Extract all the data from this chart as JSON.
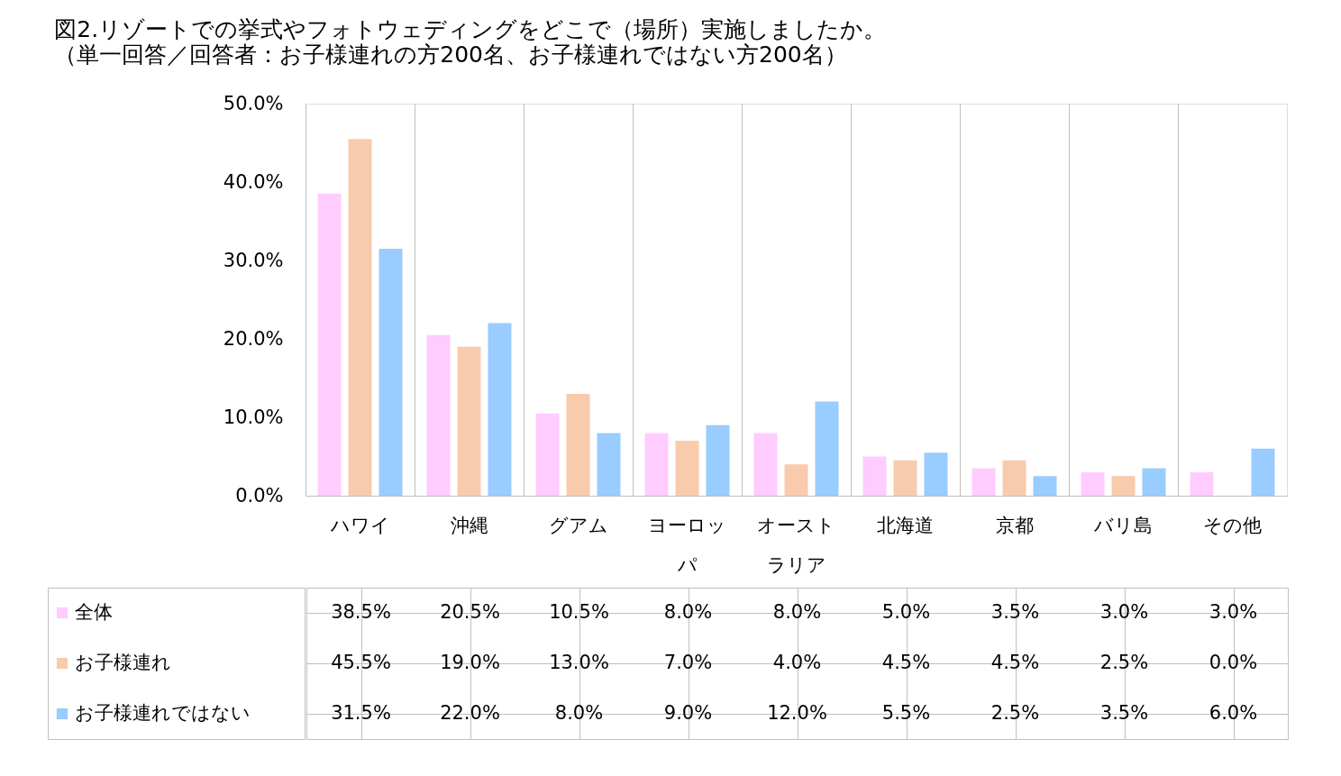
{
  "chart_data": {
    "type": "bar",
    "title": "図2.リゾートでの挙式やフォトウェディングをどこで（場所）実施しましたか。",
    "subtitle": "（単一回答／回答者：お子様連れの方200名、お子様連れではない方200名）",
    "categories": [
      "ハワイ",
      "沖縄",
      "グアム",
      "ヨーロッパ",
      "オーストラリア",
      "北海道",
      "京都",
      "バリ島",
      "その他"
    ],
    "ylim": [
      0,
      50
    ],
    "yticks": [
      {
        "value": 0,
        "label": "0.0%"
      },
      {
        "value": 10,
        "label": "10.0%"
      },
      {
        "value": 20,
        "label": "20.0%"
      },
      {
        "value": 30,
        "label": "30.0%"
      },
      {
        "value": 40,
        "label": "40.0%"
      },
      {
        "value": 50,
        "label": "50.0%"
      }
    ],
    "legend": "bottom left",
    "series": [
      {
        "name": "全体",
        "color": "#ffccff",
        "values": [
          38.5,
          20.5,
          10.5,
          8.0,
          8.0,
          5.0,
          3.5,
          3.0,
          3.0
        ],
        "value_labels": [
          "38.5%",
          "20.5%",
          "10.5%",
          "8.0%",
          "8.0%",
          "5.0%",
          "3.5%",
          "3.0%",
          "3.0%"
        ]
      },
      {
        "name": "お子様連れ",
        "color": "#f8cbad",
        "values": [
          45.5,
          19.0,
          13.0,
          7.0,
          4.0,
          4.5,
          4.5,
          2.5,
          0.0
        ],
        "value_labels": [
          "45.5%",
          "19.0%",
          "13.0%",
          "7.0%",
          "4.0%",
          "4.5%",
          "4.5%",
          "2.5%",
          "0.0%"
        ]
      },
      {
        "name": "お子様連れではない",
        "color": "#99ccff",
        "values": [
          31.5,
          22.0,
          8.0,
          9.0,
          12.0,
          5.5,
          2.5,
          3.5,
          6.0
        ],
        "value_labels": [
          "31.5%",
          "22.0%",
          "8.0%",
          "9.0%",
          "12.0%",
          "5.5%",
          "2.5%",
          "3.5%",
          "6.0%"
        ]
      }
    ]
  }
}
